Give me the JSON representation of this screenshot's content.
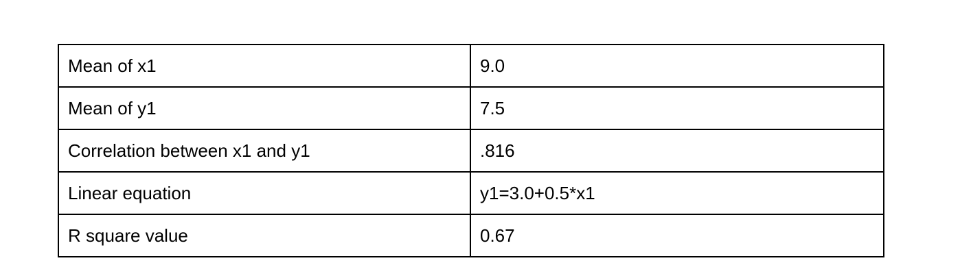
{
  "table": {
    "rows": [
      {
        "label": "Mean of x1",
        "value": "9.0"
      },
      {
        "label": "Mean of y1",
        "value": "7.5"
      },
      {
        "label": "Correlation between x1 and y1",
        "value": ".816"
      },
      {
        "label": "Linear equation",
        "value": "y1=3.0+0.5*x1"
      },
      {
        "label": "R square value",
        "value": "0.67"
      }
    ]
  }
}
